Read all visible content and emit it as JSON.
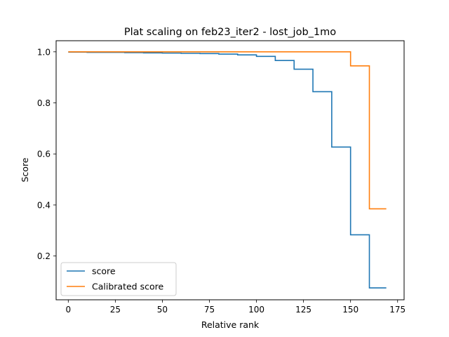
{
  "chart_data": {
    "type": "line",
    "title": "Plat scaling on feb23_iter2 - lost_job_1mo",
    "xlabel": "Relative rank",
    "ylabel": "Score",
    "xlim": [
      -6.45,
      178.45
    ],
    "ylim": [
      0.0285,
      1.0435
    ],
    "xticks": [
      0,
      25,
      50,
      75,
      100,
      125,
      150,
      175
    ],
    "yticks": [
      0.2,
      0.4,
      0.6,
      0.8,
      1.0
    ],
    "ytick_labels": [
      "0.2",
      "0.4",
      "0.6",
      "0.8",
      "1.0"
    ],
    "grid": false,
    "legend_position": "lower-left",
    "series": [
      {
        "name": "score",
        "color": "#1f77b4",
        "step": true,
        "x": [
          0,
          10,
          20,
          30,
          40,
          50,
          60,
          70,
          80,
          90,
          100,
          110,
          120,
          130,
          140,
          150,
          160,
          169
        ],
        "y": [
          0.999,
          0.998,
          0.998,
          0.997,
          0.996,
          0.995,
          0.994,
          0.993,
          0.991,
          0.988,
          0.982,
          0.966,
          0.932,
          0.844,
          0.627,
          0.283,
          0.075,
          0.075
        ]
      },
      {
        "name": "Calibrated score",
        "color": "#ff7f0e",
        "step": true,
        "x": [
          0,
          10,
          20,
          30,
          40,
          50,
          60,
          70,
          80,
          90,
          100,
          110,
          120,
          130,
          140,
          150,
          160,
          169
        ],
        "y": [
          1.0,
          1.0,
          1.0,
          1.0,
          1.0,
          1.0,
          1.0,
          1.0,
          1.0,
          1.0,
          1.0,
          1.0,
          1.0,
          1.0,
          1.0,
          0.945,
          0.385,
          0.385
        ]
      }
    ]
  }
}
